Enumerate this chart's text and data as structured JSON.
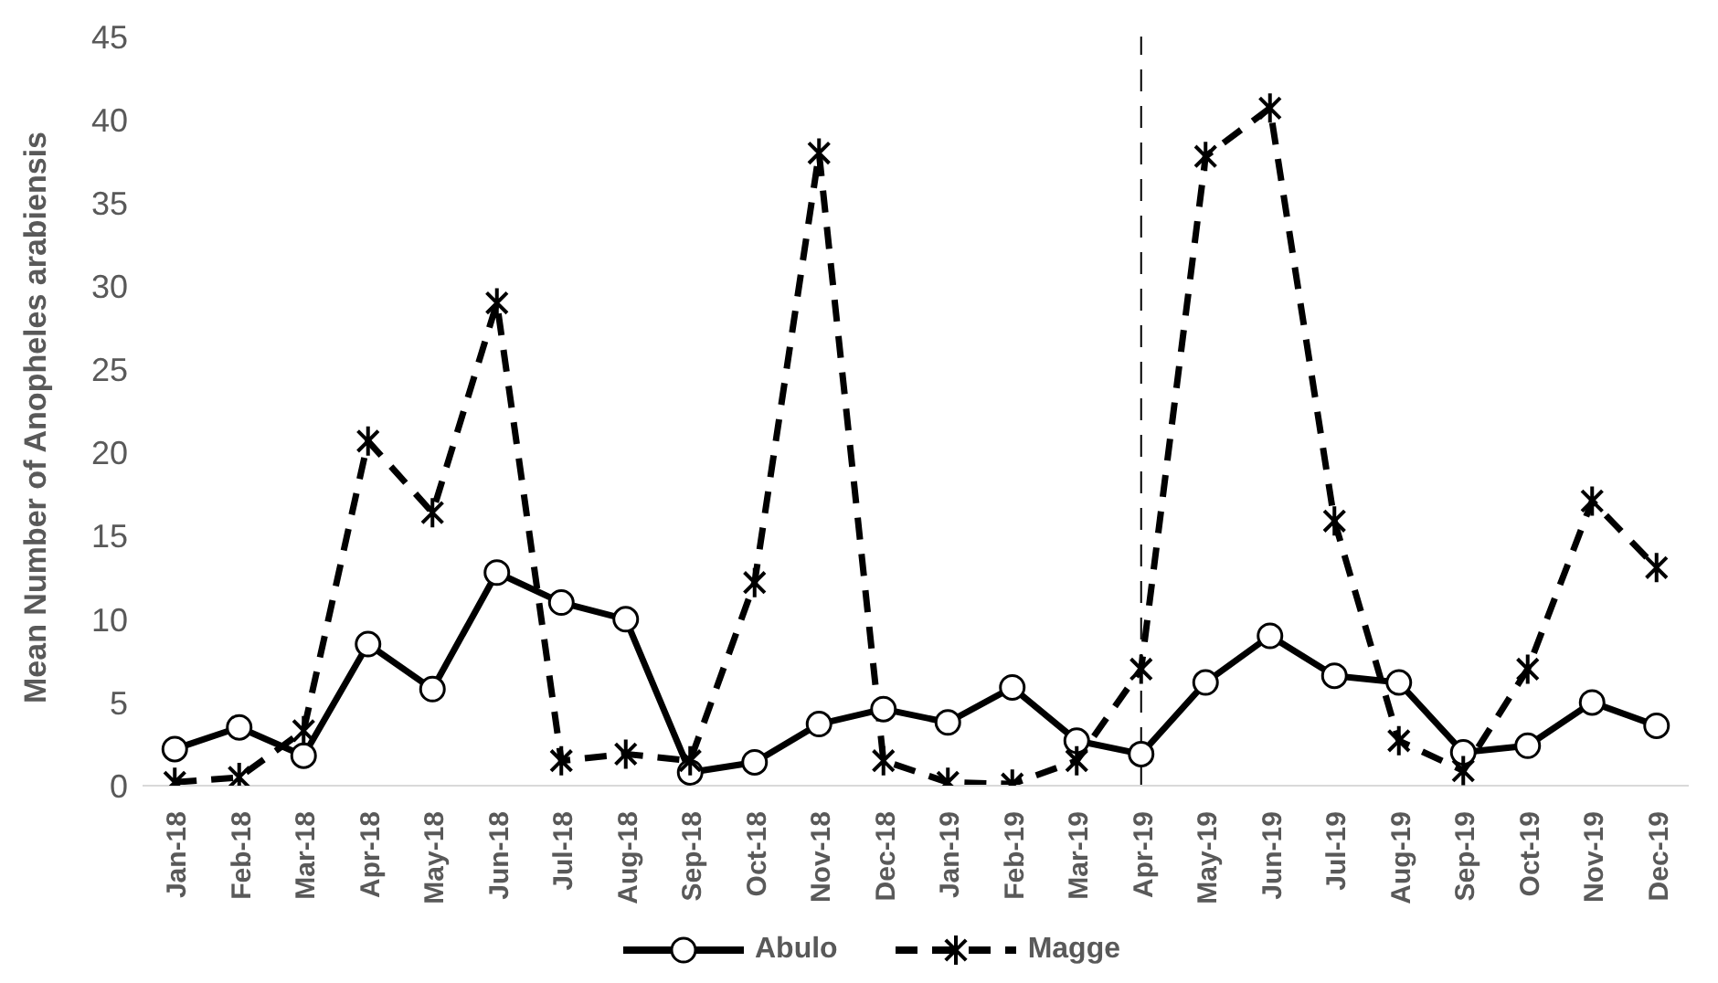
{
  "chart_data": {
    "type": "line",
    "ylabel": "Mean Number of Anopheles arabiensis",
    "categories": [
      "Jan-18",
      "Feb-18",
      "Mar-18",
      "Apr-18",
      "May-18",
      "Jun-18",
      "Jul-18",
      "Aug-18",
      "Sep-18",
      "Oct-18",
      "Nov-18",
      "Dec-18",
      "Jan-19",
      "Feb-19",
      "Mar-19",
      "Apr-19",
      "May-19",
      "Jun-19",
      "Jul-19",
      "Aug-19",
      "Sep-19",
      "Oct-19",
      "Nov-19",
      "Dec-19"
    ],
    "series": [
      {
        "name": "Abulo",
        "color": "#000000",
        "marker": "circle",
        "line_style": "solid",
        "values": [
          2.2,
          3.5,
          1.8,
          8.5,
          5.8,
          12.8,
          11,
          10,
          0.8,
          1.4,
          3.7,
          4.6,
          3.8,
          5.9,
          2.7,
          1.9,
          6.2,
          9,
          6.6,
          6.2,
          2,
          2.4,
          5,
          3.6
        ]
      },
      {
        "name": "Magge",
        "color": "#000000",
        "marker": "cross",
        "line_style": "dashed",
        "values": [
          0.2,
          0.5,
          3.3,
          20.7,
          16.4,
          29,
          1.5,
          1.9,
          1.5,
          12.2,
          38,
          1.5,
          0.2,
          0.1,
          1.5,
          7,
          37.8,
          40.7,
          15.9,
          2.7,
          0.9,
          7,
          17.1,
          13.1
        ]
      }
    ],
    "ylim": [
      0,
      45
    ],
    "yticks": [
      0,
      5,
      10,
      15,
      20,
      25,
      30,
      35,
      40,
      45
    ],
    "ref_lines": [
      {
        "axis": "x",
        "value": "Apr-19",
        "line_style": "dashed",
        "color": "#000000"
      }
    ],
    "grid": false,
    "legend": "bottom"
  }
}
